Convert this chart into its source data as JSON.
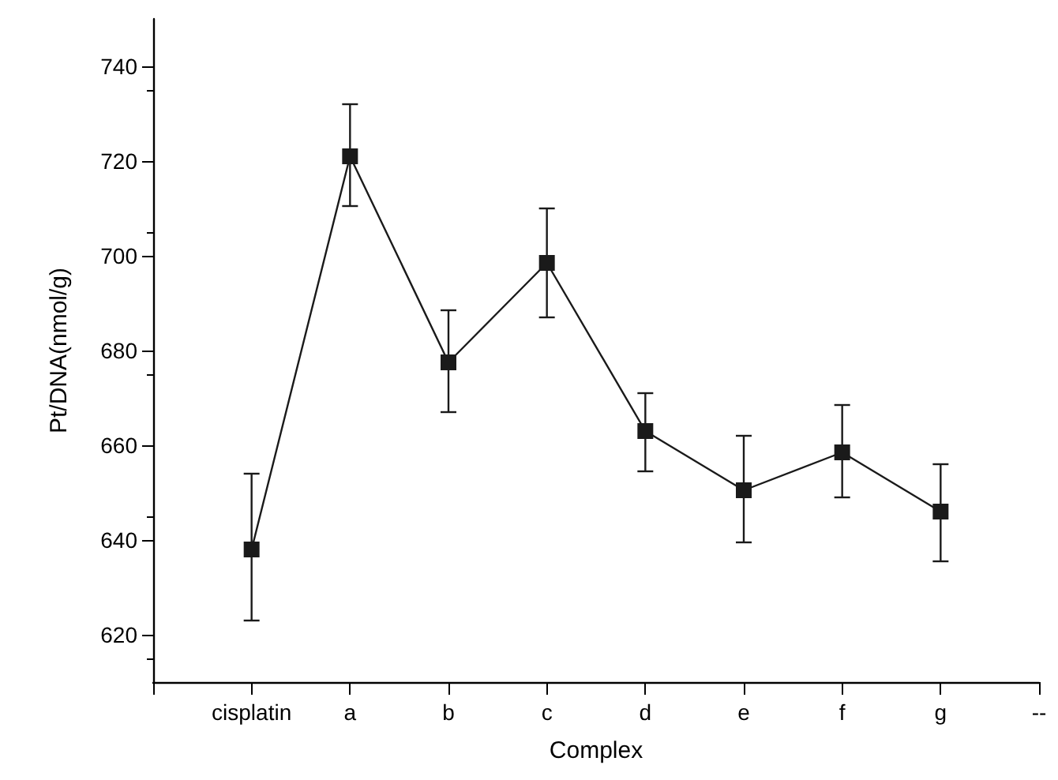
{
  "chart_data": {
    "type": "line",
    "xlabel": "Complex",
    "ylabel": "Pt/DNA(nmol/g)",
    "categories": [
      null,
      "cisplatin",
      "a",
      "b",
      "c",
      "d",
      "e",
      "f",
      "g",
      "--"
    ],
    "values": [
      null,
      638,
      721,
      677.5,
      698.5,
      663,
      650.5,
      658.5,
      646,
      null
    ],
    "errors": [
      null,
      [
        623,
        654
      ],
      [
        710.5,
        732
      ],
      [
        667,
        688.5
      ],
      [
        687,
        710
      ],
      [
        654.5,
        671
      ],
      [
        639.5,
        662
      ],
      [
        649,
        668.5
      ],
      [
        635.5,
        656
      ],
      null
    ],
    "color": "#1a1a1a",
    "marker": "square",
    "line_style": "solid",
    "ylim": [
      610,
      750
    ],
    "yticks": [
      620,
      640,
      660,
      680,
      700,
      720,
      740
    ]
  }
}
